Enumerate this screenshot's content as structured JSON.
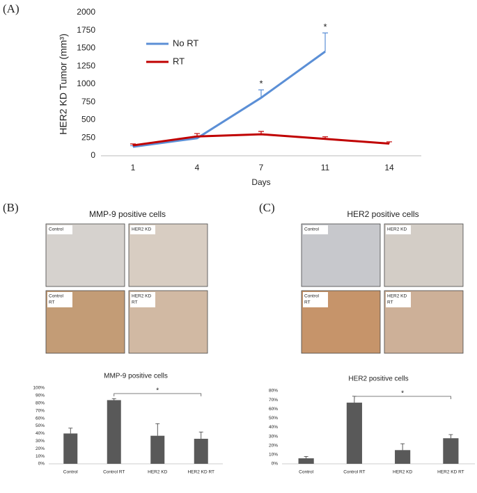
{
  "panels": [
    {
      "label": "(A)"
    },
    {
      "label": "(B)",
      "micrograph_title": "MMP-9 positive cells",
      "tiles": [
        {
          "lines": [
            "Control"
          ],
          "color": "#d6d2ce"
        },
        {
          "lines": [
            "HER2 KD"
          ],
          "color": "#d8cdc2"
        },
        {
          "lines": [
            "Control",
            "RT"
          ],
          "color": "#c39c76"
        },
        {
          "lines": [
            "HER2 KD",
            "RT"
          ],
          "color": "#d1b9a3"
        }
      ]
    },
    {
      "label": "(C)",
      "micrograph_title": "HER2 positive cells",
      "tiles": [
        {
          "lines": [
            "Control"
          ],
          "color": "#c7c8cc"
        },
        {
          "lines": [
            "HER2 KD"
          ],
          "color": "#d3cdc6"
        },
        {
          "lines": [
            "Control",
            "RT"
          ],
          "color": "#c6946a"
        },
        {
          "lines": [
            "HER2 KD",
            "RT"
          ],
          "color": "#cdb098"
        }
      ]
    }
  ],
  "chart_data": [
    {
      "type": "line",
      "ylabel": "HER2 KD Tumor  (mm³)",
      "xlabel": "Days",
      "categories": [
        "1",
        "4",
        "7",
        "11",
        "14"
      ],
      "series": [
        {
          "name": "No RT",
          "color": "#5b8fd6",
          "values": [
            125,
            245,
            810,
            1455,
            null
          ],
          "errors": [
            15,
            30,
            110,
            260,
            null
          ]
        },
        {
          "name": "RT",
          "color": "#c00000",
          "values": [
            145,
            270,
            300,
            235,
            170
          ],
          "errors": [
            20,
            40,
            40,
            30,
            25
          ]
        }
      ],
      "ylim": [
        0,
        2000
      ],
      "yticks": [
        0,
        250,
        500,
        750,
        1000,
        1250,
        1500,
        1750,
        2000
      ],
      "legend": "upper left",
      "annotations": [
        {
          "text": "*",
          "series": "No RT",
          "x": "7"
        },
        {
          "text": "*",
          "series": "No RT",
          "x": "11"
        }
      ]
    },
    {
      "type": "bar",
      "title": "MMP-9 positive cells",
      "categories": [
        "Control",
        "Control RT",
        "HER2 KD",
        "HER2 KD RT"
      ],
      "values": [
        40,
        84,
        37,
        33
      ],
      "errors": [
        7,
        2,
        16,
        9
      ],
      "color": "#595959",
      "ylim": [
        0,
        100
      ],
      "yticks": [
        {
          "value": 0,
          "label": "0%"
        },
        {
          "value": 10,
          "label": "10%"
        },
        {
          "value": 20,
          "label": "20%"
        },
        {
          "value": 30,
          "label": "30%"
        },
        {
          "value": 40,
          "label": "40%"
        },
        {
          "value": 50,
          "label": "50%"
        },
        {
          "value": 60,
          "label": "60%"
        },
        {
          "value": 70,
          "label": "70%"
        },
        {
          "value": 80,
          "label": "80%"
        },
        {
          "value": 90,
          "label": "90%"
        },
        {
          "value": 100,
          "label": "100%"
        }
      ],
      "annotations": [
        {
          "text": "*",
          "from": "Control RT",
          "to": "HER2 KD RT"
        }
      ]
    },
    {
      "type": "bar",
      "title": "HER2 positive cells",
      "categories": [
        "Control",
        "Control RT",
        "HER2 KD",
        "HER2 KD RT"
      ],
      "values": [
        6,
        67,
        15,
        28
      ],
      "errors": [
        2,
        7,
        7,
        4
      ],
      "color": "#595959",
      "ylim": [
        0,
        80
      ],
      "yticks": [
        {
          "value": 0,
          "label": "0%"
        },
        {
          "value": 10,
          "label": "10%"
        },
        {
          "value": 20,
          "label": "20%"
        },
        {
          "value": 30,
          "label": "30%"
        },
        {
          "value": 40,
          "label": "40%"
        },
        {
          "value": 50,
          "label": "50%"
        },
        {
          "value": 60,
          "label": "60%"
        },
        {
          "value": 70,
          "label": "70%"
        },
        {
          "value": 80,
          "label": "80%"
        }
      ],
      "annotations": [
        {
          "text": "*",
          "from": "Control RT",
          "to": "HER2 KD RT"
        }
      ]
    }
  ]
}
